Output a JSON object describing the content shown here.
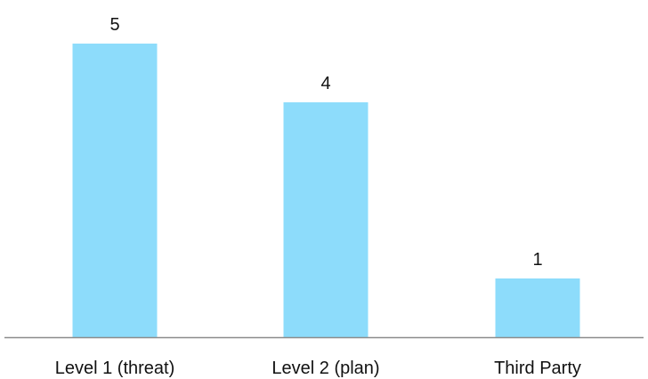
{
  "chart_data": {
    "type": "bar",
    "title": "",
    "xlabel": "",
    "ylabel": "",
    "categories": [
      "Level 1 (threat)",
      "Level 2 (plan)",
      "Third Party"
    ],
    "values": [
      5,
      4,
      1
    ],
    "ylim": [
      0,
      5
    ],
    "grid": false,
    "legend": "none",
    "bar_color": "#8ddcfb",
    "axis_color": "#8c8c8c"
  }
}
